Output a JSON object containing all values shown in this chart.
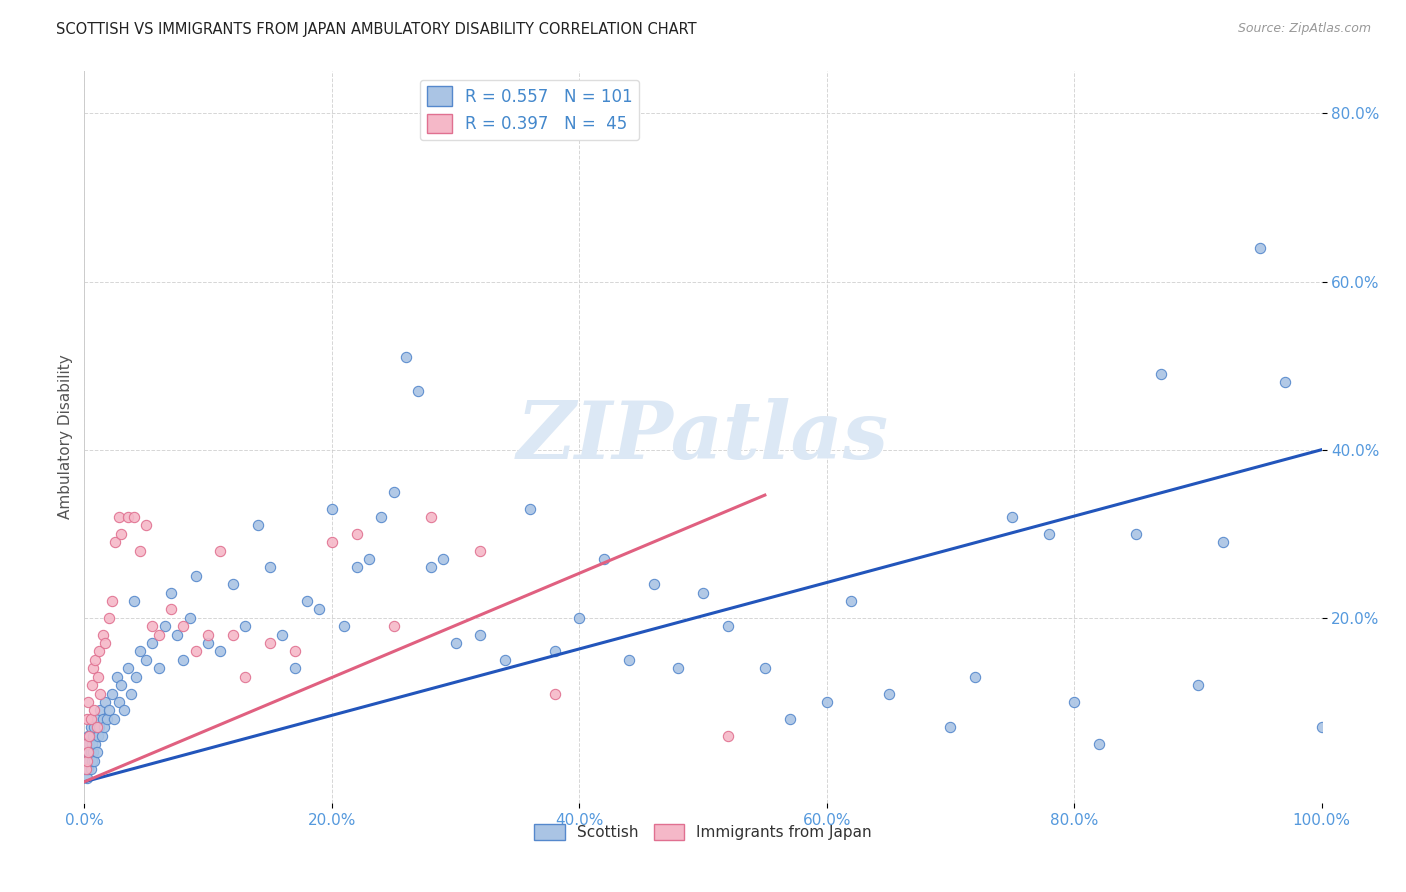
{
  "title": "SCOTTISH VS IMMIGRANTS FROM JAPAN AMBULATORY DISABILITY CORRELATION CHART",
  "source": "Source: ZipAtlas.com",
  "ylabel": "Ambulatory Disability",
  "xlim": [
    0.0,
    1.0
  ],
  "ylim": [
    -0.02,
    0.85
  ],
  "xtick_vals": [
    0.0,
    0.2,
    0.4,
    0.6,
    0.8,
    1.0
  ],
  "ytick_vals": [
    0.2,
    0.4,
    0.6,
    0.8
  ],
  "scottish_fill": "#aac4e4",
  "scottish_edge": "#5588cc",
  "japan_fill": "#f5b8c8",
  "japan_edge": "#e07090",
  "scottish_line_color": "#2255bb",
  "japan_line_color": "#e06080",
  "tick_color": "#5599dd",
  "background_color": "#ffffff",
  "R_scottish": 0.557,
  "N_scottish": 101,
  "R_japan": 0.397,
  "N_japan": 45,
  "watermark_color": "#dce8f5",
  "scottish_slope": 0.395,
  "scottish_intercept": 0.005,
  "japan_slope": 0.62,
  "japan_intercept": 0.005,
  "scottish_x": [
    0.001,
    0.001,
    0.002,
    0.002,
    0.002,
    0.003,
    0.003,
    0.003,
    0.004,
    0.004,
    0.005,
    0.005,
    0.005,
    0.006,
    0.006,
    0.007,
    0.007,
    0.008,
    0.008,
    0.009,
    0.01,
    0.01,
    0.011,
    0.012,
    0.013,
    0.014,
    0.015,
    0.016,
    0.017,
    0.018,
    0.02,
    0.022,
    0.024,
    0.026,
    0.028,
    0.03,
    0.032,
    0.035,
    0.038,
    0.04,
    0.042,
    0.045,
    0.05,
    0.055,
    0.06,
    0.065,
    0.07,
    0.075,
    0.08,
    0.085,
    0.09,
    0.1,
    0.11,
    0.12,
    0.13,
    0.14,
    0.15,
    0.16,
    0.17,
    0.18,
    0.19,
    0.2,
    0.21,
    0.22,
    0.23,
    0.24,
    0.25,
    0.26,
    0.27,
    0.28,
    0.29,
    0.3,
    0.32,
    0.34,
    0.36,
    0.38,
    0.4,
    0.42,
    0.44,
    0.46,
    0.48,
    0.5,
    0.52,
    0.55,
    0.57,
    0.6,
    0.62,
    0.65,
    0.7,
    0.72,
    0.75,
    0.78,
    0.8,
    0.82,
    0.85,
    0.87,
    0.9,
    0.92,
    0.95,
    0.97,
    1.0
  ],
  "scottish_y": [
    0.02,
    0.04,
    0.01,
    0.03,
    0.05,
    0.02,
    0.04,
    0.06,
    0.03,
    0.05,
    0.02,
    0.04,
    0.07,
    0.03,
    0.05,
    0.04,
    0.06,
    0.03,
    0.07,
    0.05,
    0.04,
    0.08,
    0.06,
    0.07,
    0.09,
    0.06,
    0.08,
    0.07,
    0.1,
    0.08,
    0.09,
    0.11,
    0.08,
    0.13,
    0.1,
    0.12,
    0.09,
    0.14,
    0.11,
    0.22,
    0.13,
    0.16,
    0.15,
    0.17,
    0.14,
    0.19,
    0.23,
    0.18,
    0.15,
    0.2,
    0.25,
    0.17,
    0.16,
    0.24,
    0.19,
    0.31,
    0.26,
    0.18,
    0.14,
    0.22,
    0.21,
    0.33,
    0.19,
    0.26,
    0.27,
    0.32,
    0.35,
    0.51,
    0.47,
    0.26,
    0.27,
    0.17,
    0.18,
    0.15,
    0.33,
    0.16,
    0.2,
    0.27,
    0.15,
    0.24,
    0.14,
    0.23,
    0.19,
    0.14,
    0.08,
    0.1,
    0.22,
    0.11,
    0.07,
    0.13,
    0.32,
    0.3,
    0.1,
    0.05,
    0.3,
    0.49,
    0.12,
    0.29,
    0.64,
    0.48,
    0.07
  ],
  "japan_x": [
    0.001,
    0.001,
    0.002,
    0.002,
    0.003,
    0.003,
    0.004,
    0.005,
    0.006,
    0.007,
    0.008,
    0.009,
    0.01,
    0.011,
    0.012,
    0.013,
    0.015,
    0.017,
    0.02,
    0.022,
    0.025,
    0.028,
    0.03,
    0.035,
    0.04,
    0.045,
    0.05,
    0.055,
    0.06,
    0.07,
    0.08,
    0.09,
    0.1,
    0.11,
    0.12,
    0.13,
    0.15,
    0.17,
    0.2,
    0.22,
    0.25,
    0.28,
    0.32,
    0.38,
    0.52
  ],
  "japan_y": [
    0.02,
    0.05,
    0.03,
    0.08,
    0.04,
    0.1,
    0.06,
    0.08,
    0.12,
    0.14,
    0.09,
    0.15,
    0.07,
    0.13,
    0.16,
    0.11,
    0.18,
    0.17,
    0.2,
    0.22,
    0.29,
    0.32,
    0.3,
    0.32,
    0.32,
    0.28,
    0.31,
    0.19,
    0.18,
    0.21,
    0.19,
    0.16,
    0.18,
    0.28,
    0.18,
    0.13,
    0.17,
    0.16,
    0.29,
    0.3,
    0.19,
    0.32,
    0.28,
    0.11,
    0.06
  ]
}
